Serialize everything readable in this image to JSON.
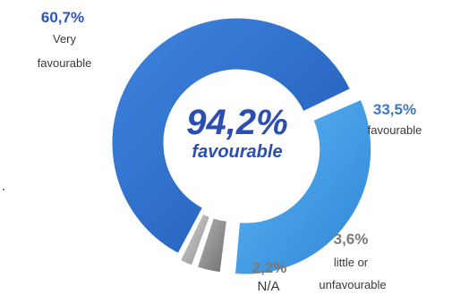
{
  "chart_data": {
    "type": "pie",
    "style": "donut-exploded",
    "center_label": {
      "value": "94,2%",
      "text": "favourable"
    },
    "slices": [
      {
        "value": 60.7,
        "pct_label": "60,7%",
        "label_lines": [
          "Very",
          "favourable"
        ],
        "color": "#2a6fd1"
      },
      {
        "value": 33.5,
        "pct_label": "33,5%",
        "label_lines": [
          "favourable"
        ],
        "color": "#3fa0ea"
      },
      {
        "value": 3.6,
        "pct_label": "3,6%",
        "label_lines": [
          "little or",
          "unfavourable"
        ],
        "color": "#9a9a9a"
      },
      {
        "value": 2.2,
        "pct_label": "2,2%",
        "label_lines": [
          "N/A"
        ],
        "color": "#b8b8b8"
      }
    ]
  }
}
